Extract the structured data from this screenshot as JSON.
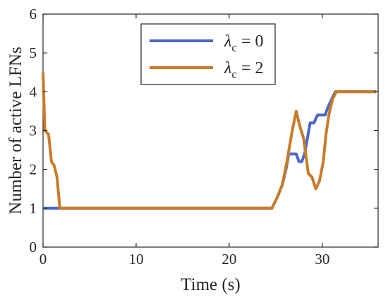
{
  "chart_data": {
    "type": "line",
    "xlabel": "Time (s)",
    "ylabel": "Number of active LFNs",
    "xlim": [
      0,
      36
    ],
    "ylim": [
      0,
      6
    ],
    "x_ticks": [
      0,
      10,
      20,
      30
    ],
    "y_ticks": [
      0,
      1,
      2,
      3,
      4,
      5,
      6
    ],
    "grid": false,
    "legend_position": "top-center",
    "series": [
      {
        "name_symbol": "λ",
        "name_subscript": "c",
        "name_value": "= 0",
        "color": "#4a67c7",
        "points": [
          [
            0,
            1
          ],
          [
            24.6,
            1
          ],
          [
            25.2,
            1.3
          ],
          [
            25.7,
            1.6
          ],
          [
            26.1,
            2.0
          ],
          [
            26.4,
            2.4
          ],
          [
            26.8,
            2.4
          ],
          [
            27.2,
            2.4
          ],
          [
            27.5,
            2.2
          ],
          [
            27.8,
            2.2
          ],
          [
            28.1,
            2.4
          ],
          [
            28.4,
            2.8
          ],
          [
            28.7,
            3.2
          ],
          [
            29.1,
            3.2
          ],
          [
            29.5,
            3.4
          ],
          [
            29.9,
            3.4
          ],
          [
            30.3,
            3.4
          ],
          [
            30.6,
            3.6
          ],
          [
            31.0,
            3.8
          ],
          [
            31.4,
            4.0
          ],
          [
            35.8,
            4.0
          ]
        ]
      },
      {
        "name_symbol": "λ",
        "name_subscript": "c",
        "name_value": "= 2",
        "color": "#c87b2a",
        "points": [
          [
            0,
            4.5
          ],
          [
            0.2,
            3.0
          ],
          [
            0.6,
            2.9
          ],
          [
            0.9,
            2.2
          ],
          [
            1.2,
            2.1
          ],
          [
            1.5,
            1.8
          ],
          [
            1.8,
            1.0
          ],
          [
            24.6,
            1.0
          ],
          [
            25.2,
            1.3
          ],
          [
            25.7,
            1.6
          ],
          [
            26.2,
            2.2
          ],
          [
            26.7,
            2.9
          ],
          [
            27.2,
            3.5
          ],
          [
            27.6,
            3.1
          ],
          [
            28.0,
            2.8
          ],
          [
            28.5,
            1.9
          ],
          [
            28.9,
            1.8
          ],
          [
            29.3,
            1.5
          ],
          [
            29.7,
            1.7
          ],
          [
            30.1,
            2.2
          ],
          [
            30.4,
            2.9
          ],
          [
            30.7,
            3.4
          ],
          [
            31.1,
            3.8
          ],
          [
            31.5,
            4.0
          ],
          [
            32.0,
            4.0
          ],
          [
            35.8,
            4.0
          ]
        ]
      }
    ]
  }
}
